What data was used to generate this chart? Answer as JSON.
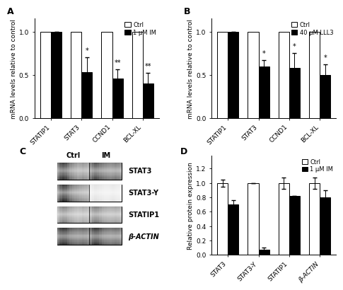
{
  "panelA": {
    "categories": [
      "STATIP1",
      "STAT3",
      "CCND1",
      "BCL-XL"
    ],
    "ctrl_values": [
      1.0,
      1.0,
      1.0,
      1.0
    ],
    "treat_values": [
      1.0,
      0.53,
      0.46,
      0.4
    ],
    "treat_err": [
      0.0,
      0.17,
      0.1,
      0.12
    ],
    "significance": [
      "",
      "*",
      "**",
      "**"
    ],
    "ylabel": "mRNA levels relative to control",
    "legend1": "Ctrl",
    "legend2": "1 μM IM",
    "ylim": [
      0,
      1.15
    ],
    "yticks": [
      0.0,
      0.5,
      1.0
    ]
  },
  "panelB": {
    "categories": [
      "STATIP1",
      "STAT3",
      "CCND1",
      "BCL-XL"
    ],
    "ctrl_values": [
      1.0,
      1.0,
      1.0,
      1.0
    ],
    "treat_values": [
      1.0,
      0.6,
      0.58,
      0.5
    ],
    "treat_err": [
      0.0,
      0.07,
      0.17,
      0.12
    ],
    "significance": [
      "",
      "*",
      "*",
      "*"
    ],
    "ylabel": "mRNA levels relative to control",
    "legend1": "Ctrl",
    "legend2": "40 μM LLL3",
    "ylim": [
      0,
      1.15
    ],
    "yticks": [
      0.0,
      0.5,
      1.0
    ]
  },
  "panelC": {
    "bands_labels": [
      "STAT3",
      "STAT3-Y",
      "STATIP1",
      "β-ACTIN"
    ],
    "col_labels": [
      "Ctrl",
      "IM"
    ],
    "band_data": [
      {
        "ctrl": [
          0.6,
          0.75,
          0.8,
          0.75,
          0.65,
          0.55,
          0.5,
          0.45,
          0.4,
          0.42,
          0.45,
          0.42,
          0.38
        ],
        "im": [
          0.55,
          0.65,
          0.72,
          0.68,
          0.62,
          0.58,
          0.55,
          0.52,
          0.5,
          0.52,
          0.55,
          0.52,
          0.48
        ]
      },
      {
        "ctrl": [
          0.55,
          0.72,
          0.82,
          0.78,
          0.68,
          0.58,
          0.52,
          0.48,
          0.45,
          0.42,
          0.4,
          0.38,
          0.35
        ],
        "im": [
          0.08,
          0.1,
          0.12,
          0.11,
          0.1,
          0.09,
          0.08,
          0.08,
          0.09,
          0.1,
          0.09,
          0.08,
          0.07
        ]
      },
      {
        "ctrl": [
          0.35,
          0.45,
          0.5,
          0.48,
          0.42,
          0.38,
          0.35,
          0.32,
          0.3,
          0.32,
          0.35,
          0.33,
          0.3
        ],
        "im": [
          0.38,
          0.48,
          0.52,
          0.5,
          0.45,
          0.4,
          0.38,
          0.36,
          0.35,
          0.36,
          0.38,
          0.36,
          0.33
        ]
      },
      {
        "ctrl": [
          0.65,
          0.78,
          0.82,
          0.8,
          0.72,
          0.65,
          0.62,
          0.6,
          0.58,
          0.6,
          0.62,
          0.6,
          0.55
        ],
        "im": [
          0.62,
          0.75,
          0.8,
          0.78,
          0.7,
          0.63,
          0.6,
          0.58,
          0.56,
          0.58,
          0.6,
          0.58,
          0.53
        ]
      }
    ]
  },
  "panelD": {
    "categories": [
      "STAT3",
      "STAT3-Y",
      "STATIP1",
      "β-ACTIN°"
    ],
    "ctrl_values": [
      1.0,
      1.0,
      1.0,
      1.0
    ],
    "treat_values": [
      0.7,
      0.07,
      0.82,
      0.8
    ],
    "ctrl_err": [
      0.05,
      0.0,
      0.08,
      0.08
    ],
    "treat_err": [
      0.06,
      0.03,
      0.0,
      0.1
    ],
    "ylabel": "Relative protein expression",
    "legend1": "Ctrl",
    "legend2": "1 μM IM",
    "ylim": [
      0,
      1.38
    ],
    "yticks": [
      0.0,
      0.2,
      0.4,
      0.6,
      0.8,
      1.0,
      1.2
    ]
  },
  "bar_width": 0.35,
  "ctrl_color": "white",
  "treat_color": "black",
  "edge_color": "black",
  "font_size": 7,
  "label_font_size": 6.5
}
